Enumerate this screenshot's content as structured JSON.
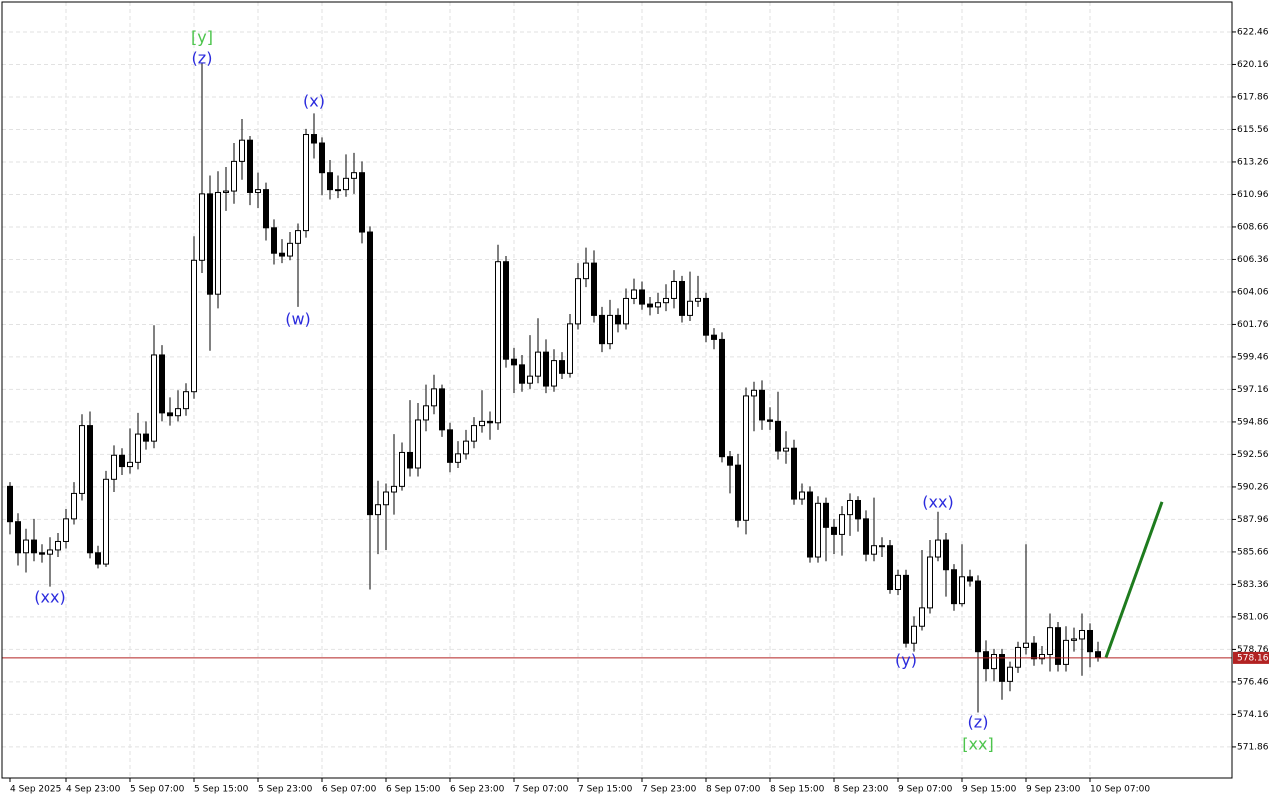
{
  "chart_data": {
    "type": "candlestick",
    "categories": [
      "4 Sep 2025",
      null,
      null,
      null,
      null,
      null,
      null,
      "4 Sep 23:00",
      null,
      null,
      null,
      null,
      null,
      null,
      null,
      "5 Sep 07:00",
      null,
      null,
      null,
      null,
      null,
      null,
      null,
      "5 Sep 15:00",
      null,
      null,
      null,
      null,
      null,
      null,
      null,
      "5 Sep 23:00",
      null,
      null,
      null,
      null,
      null,
      null,
      null,
      "6 Sep 07:00",
      null,
      null,
      null,
      null,
      null,
      null,
      null,
      "6 Sep 15:00",
      null,
      null,
      null,
      null,
      null,
      null,
      null,
      "6 Sep 23:00",
      null,
      null,
      null,
      null,
      null,
      null,
      null,
      "7 Sep 07:00",
      null,
      null,
      null,
      null,
      null,
      null,
      null,
      "7 Sep 15:00",
      null,
      null,
      null,
      null,
      null,
      null,
      null,
      "7 Sep 23:00",
      null,
      null,
      null,
      null,
      null,
      null,
      null,
      "8 Sep 07:00",
      null,
      null,
      null,
      null,
      null,
      null,
      null,
      "8 Sep 15:00",
      null,
      null,
      null,
      null,
      null,
      null,
      null,
      "8 Sep 23:00",
      null,
      null,
      null,
      null,
      null,
      null,
      null,
      "9 Sep 07:00",
      null,
      null,
      null,
      null,
      null,
      null,
      null,
      "9 Sep 15:00",
      null,
      null,
      null,
      null,
      null,
      null,
      null,
      "9 Sep 23:00",
      null,
      null,
      null,
      null,
      null,
      null,
      null,
      "10 Sep 07:00",
      null
    ],
    "open": [
      590.3,
      587.8,
      585.6,
      586.5,
      585.6,
      585.5,
      585.8,
      586.4,
      588.0,
      589.8,
      594.6,
      585.6,
      584.8,
      590.8,
      592.5,
      591.7,
      592.0,
      594.0,
      593.5,
      599.6,
      595.5,
      595.3,
      595.8,
      597.0,
      606.3,
      611.0,
      603.9,
      611.1,
      611.2,
      613.3,
      614.8,
      611.1,
      611.3,
      608.6,
      606.8,
      606.6,
      607.5,
      608.4,
      615.2,
      614.6,
      612.5,
      611.3,
      611.3,
      612.1,
      612.5,
      608.3,
      588.3,
      589.0,
      589.9,
      590.3,
      592.7,
      591.6,
      595.0,
      596.0,
      597.2,
      594.3,
      592.0,
      592.6,
      593.5,
      594.6,
      594.9,
      594.8,
      606.2,
      599.3,
      598.9,
      597.6,
      598.1,
      599.8,
      597.4,
      599.2,
      598.3,
      601.8,
      605.0,
      606.1,
      602.4,
      600.4,
      602.4,
      601.8,
      603.6,
      604.2,
      603.2,
      603.0,
      603.3,
      603.6,
      604.8,
      602.4,
      603.4,
      603.6,
      601.0,
      600.7,
      592.4,
      591.8,
      587.9,
      596.7,
      597.1,
      595.0,
      594.9,
      592.8,
      593.0,
      589.4,
      589.9,
      585.3,
      589.1,
      587.4,
      586.9,
      588.3,
      589.3,
      588.0,
      585.5,
      586.1,
      586.1,
      583.0,
      584.0,
      579.2,
      580.4,
      581.7,
      585.3,
      586.5,
      584.4,
      582.0,
      583.9,
      583.6,
      578.6,
      577.4,
      578.4,
      576.5,
      577.5,
      578.9,
      579.2,
      578.1,
      578.4,
      580.3,
      577.7,
      579.4,
      579.5,
      580.1,
      578.6
    ],
    "high": [
      590.6,
      588.4,
      587.3,
      588.0,
      586.2,
      586.7,
      587.0,
      588.7,
      590.6,
      595.4,
      595.6,
      586.1,
      591.4,
      593.2,
      593.0,
      594.4,
      595.5,
      594.9,
      601.7,
      600.3,
      596.6,
      597.1,
      597.6,
      608.0,
      620.3,
      612.3,
      612.6,
      612.9,
      614.6,
      616.3,
      615.1,
      612.5,
      611.8,
      609.2,
      607.8,
      608.3,
      608.9,
      615.6,
      616.7,
      615.0,
      613.4,
      612.3,
      613.8,
      613.9,
      613.3,
      608.7,
      590.7,
      590.5,
      594.0,
      593.4,
      596.4,
      596.2,
      597.5,
      598.2,
      597.5,
      594.8,
      593.5,
      594.3,
      595.2,
      597.1,
      595.6,
      607.4,
      606.6,
      600.1,
      599.6,
      601.0,
      602.2,
      600.7,
      600.0,
      599.8,
      602.5,
      606.1,
      607.2,
      607.0,
      603.0,
      603.5,
      602.9,
      604.3,
      605.0,
      604.8,
      603.7,
      604.0,
      604.6,
      605.6,
      605.2,
      605.5,
      605.2,
      604.0,
      601.5,
      601.2,
      592.8,
      592.6,
      597.3,
      597.7,
      597.8,
      595.9,
      597.0,
      594.2,
      593.6,
      590.5,
      590.3,
      589.6,
      589.5,
      588.0,
      588.9,
      589.8,
      589.6,
      588.6,
      589.5,
      586.7,
      586.5,
      584.4,
      584.4,
      581.1,
      585.8,
      586.5,
      588.5,
      587.0,
      584.8,
      586.2,
      584.4,
      584.0,
      579.4,
      578.8,
      578.8,
      577.9,
      579.3,
      586.2,
      579.7,
      579.0,
      581.3,
      580.7,
      580.4,
      580.3,
      581.3,
      580.6,
      579.3
    ],
    "low": [
      586.9,
      584.7,
      584.2,
      585.0,
      584.9,
      583.2,
      585.3,
      585.9,
      587.6,
      589.3,
      585.2,
      584.5,
      584.6,
      589.9,
      591.1,
      591.2,
      591.5,
      592.9,
      593.0,
      594.9,
      594.6,
      594.9,
      595.3,
      596.5,
      605.4,
      599.9,
      602.9,
      609.8,
      610.3,
      612.0,
      610.2,
      610.0,
      607.7,
      606.0,
      606.1,
      606.3,
      603.0,
      607.9,
      613.5,
      610.9,
      610.6,
      610.7,
      610.8,
      611.0,
      607.5,
      583.0,
      585.5,
      585.8,
      588.3,
      590.0,
      591.0,
      591.0,
      594.2,
      595.4,
      593.8,
      591.3,
      591.6,
      592.2,
      593.0,
      594.1,
      593.6,
      594.3,
      598.7,
      596.9,
      597.0,
      597.2,
      597.6,
      596.9,
      597.0,
      597.9,
      598.0,
      601.4,
      604.4,
      601.9,
      599.8,
      600.0,
      601.2,
      601.4,
      603.2,
      602.8,
      602.4,
      602.5,
      602.7,
      602.9,
      601.9,
      602.0,
      603.0,
      600.5,
      600.0,
      592.0,
      589.8,
      587.4,
      586.9,
      594.2,
      594.3,
      594.3,
      592.2,
      591.9,
      589.0,
      589.0,
      584.9,
      584.9,
      585.0,
      585.5,
      585.4,
      586.8,
      587.1,
      585.0,
      585.0,
      585.3,
      582.7,
      582.6,
      578.9,
      578.6,
      580.1,
      581.3,
      585.0,
      582.5,
      581.5,
      581.8,
      583.2,
      574.3,
      576.5,
      576.5,
      575.2,
      575.8,
      577.1,
      578.4,
      577.6,
      577.7,
      577.2,
      577.2,
      577.2,
      578.6,
      576.9,
      577.5,
      577.9
    ],
    "close": [
      587.8,
      585.6,
      586.5,
      585.6,
      585.5,
      585.8,
      586.4,
      588.0,
      589.8,
      594.6,
      585.6,
      584.8,
      590.8,
      592.5,
      591.7,
      592.0,
      594.0,
      593.5,
      599.6,
      595.5,
      595.3,
      595.8,
      597.0,
      606.3,
      611.0,
      603.9,
      611.1,
      611.2,
      613.3,
      614.8,
      611.1,
      611.3,
      608.6,
      606.8,
      606.6,
      607.5,
      608.4,
      615.2,
      614.6,
      612.5,
      611.3,
      611.3,
      612.1,
      612.5,
      608.3,
      588.3,
      589.0,
      589.9,
      590.3,
      592.7,
      591.6,
      595.0,
      596.0,
      597.2,
      594.3,
      592.0,
      592.6,
      593.5,
      594.6,
      594.9,
      594.8,
      606.2,
      599.3,
      598.9,
      597.6,
      598.1,
      599.8,
      597.4,
      599.2,
      598.3,
      601.8,
      605.0,
      606.1,
      602.4,
      600.4,
      602.4,
      601.8,
      603.6,
      604.2,
      603.2,
      603.0,
      603.3,
      603.6,
      604.8,
      602.4,
      603.4,
      603.6,
      601.0,
      600.7,
      592.4,
      591.8,
      587.9,
      596.7,
      597.1,
      595.0,
      594.9,
      592.8,
      593.0,
      589.4,
      589.9,
      585.3,
      589.1,
      587.4,
      586.9,
      588.3,
      589.3,
      588.0,
      585.5,
      586.1,
      586.1,
      583.0,
      584.0,
      579.2,
      580.4,
      581.7,
      585.3,
      586.5,
      584.4,
      582.0,
      583.9,
      583.6,
      578.6,
      577.4,
      578.4,
      576.5,
      577.5,
      578.9,
      579.2,
      578.1,
      578.4,
      580.3,
      577.7,
      579.4,
      579.5,
      580.1,
      578.6,
      578.2
    ],
    "ylim": [
      569.66,
      624.58
    ],
    "yticks": [
      622.46,
      620.16,
      617.86,
      615.56,
      613.26,
      610.96,
      608.66,
      606.36,
      604.06,
      601.76,
      599.46,
      597.16,
      594.86,
      592.56,
      590.26,
      587.96,
      585.66,
      583.36,
      581.06,
      578.76,
      576.46,
      574.16,
      571.86
    ],
    "grid": true,
    "current_price": 578.16,
    "current_price_color": "#b22222",
    "forecast": {
      "color": "#1e7b1e",
      "values": [
        578.2,
        589.2
      ]
    },
    "annotations": [
      {
        "text": "(xx)",
        "color": "#2b2bdd"
      },
      {
        "text": "[y]",
        "color": "#4cc44c"
      },
      {
        "text": "(z)",
        "color": "#2b2bdd"
      },
      {
        "text": "(x)",
        "color": "#2b2bdd"
      },
      {
        "text": "(w)",
        "color": "#2b2bdd"
      },
      {
        "text": "(xx)",
        "color": "#2b2bdd"
      },
      {
        "text": "(y)",
        "color": "#2b2bdd"
      },
      {
        "text": "(z)",
        "color": "#2b2bdd"
      },
      {
        "text": "[xx]",
        "color": "#4cc44c"
      }
    ]
  }
}
